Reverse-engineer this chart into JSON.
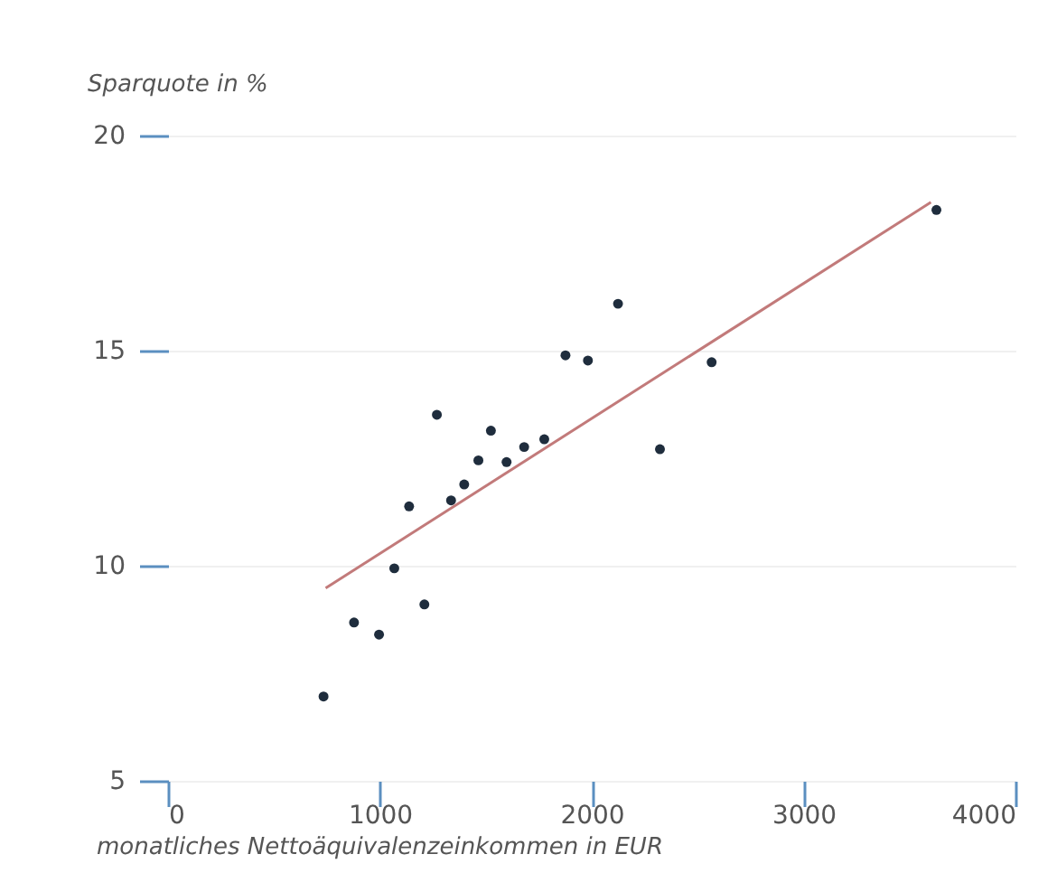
{
  "chart_data": {
    "type": "scatter",
    "xlabel": "monatliches Nettoäquivalenzeinkommen in EUR",
    "ylabel": "Sparquote in %",
    "xlim": [
      0,
      4000
    ],
    "xticks": [
      0,
      1000,
      2000,
      3000,
      4000
    ],
    "ylim": [
      5,
      20
    ],
    "yticks": [
      5,
      10,
      15,
      20
    ],
    "grid": "y",
    "series": [
      {
        "color": "#1f2d3d",
        "marker": "circle",
        "x": [
          734,
          878,
          996,
          1068,
          1210,
          1138,
          1269,
          1336,
          1398,
          1465,
          1524,
          1598,
          1681,
          1776,
          1876,
          1982,
          2124,
          2322,
          2566,
          3627
        ],
        "values": [
          6.96,
          8.68,
          8.4,
          9.94,
          9.1,
          11.38,
          13.51,
          11.52,
          11.89,
          12.45,
          13.14,
          12.41,
          12.76,
          12.94,
          14.89,
          14.77,
          16.09,
          12.71,
          14.73,
          18.27
        ]
      },
      {
        "type": "line",
        "color": "#c27a7a",
        "x": [
          744,
          3601
        ],
        "values": [
          9.48,
          18.45
        ]
      }
    ]
  }
}
